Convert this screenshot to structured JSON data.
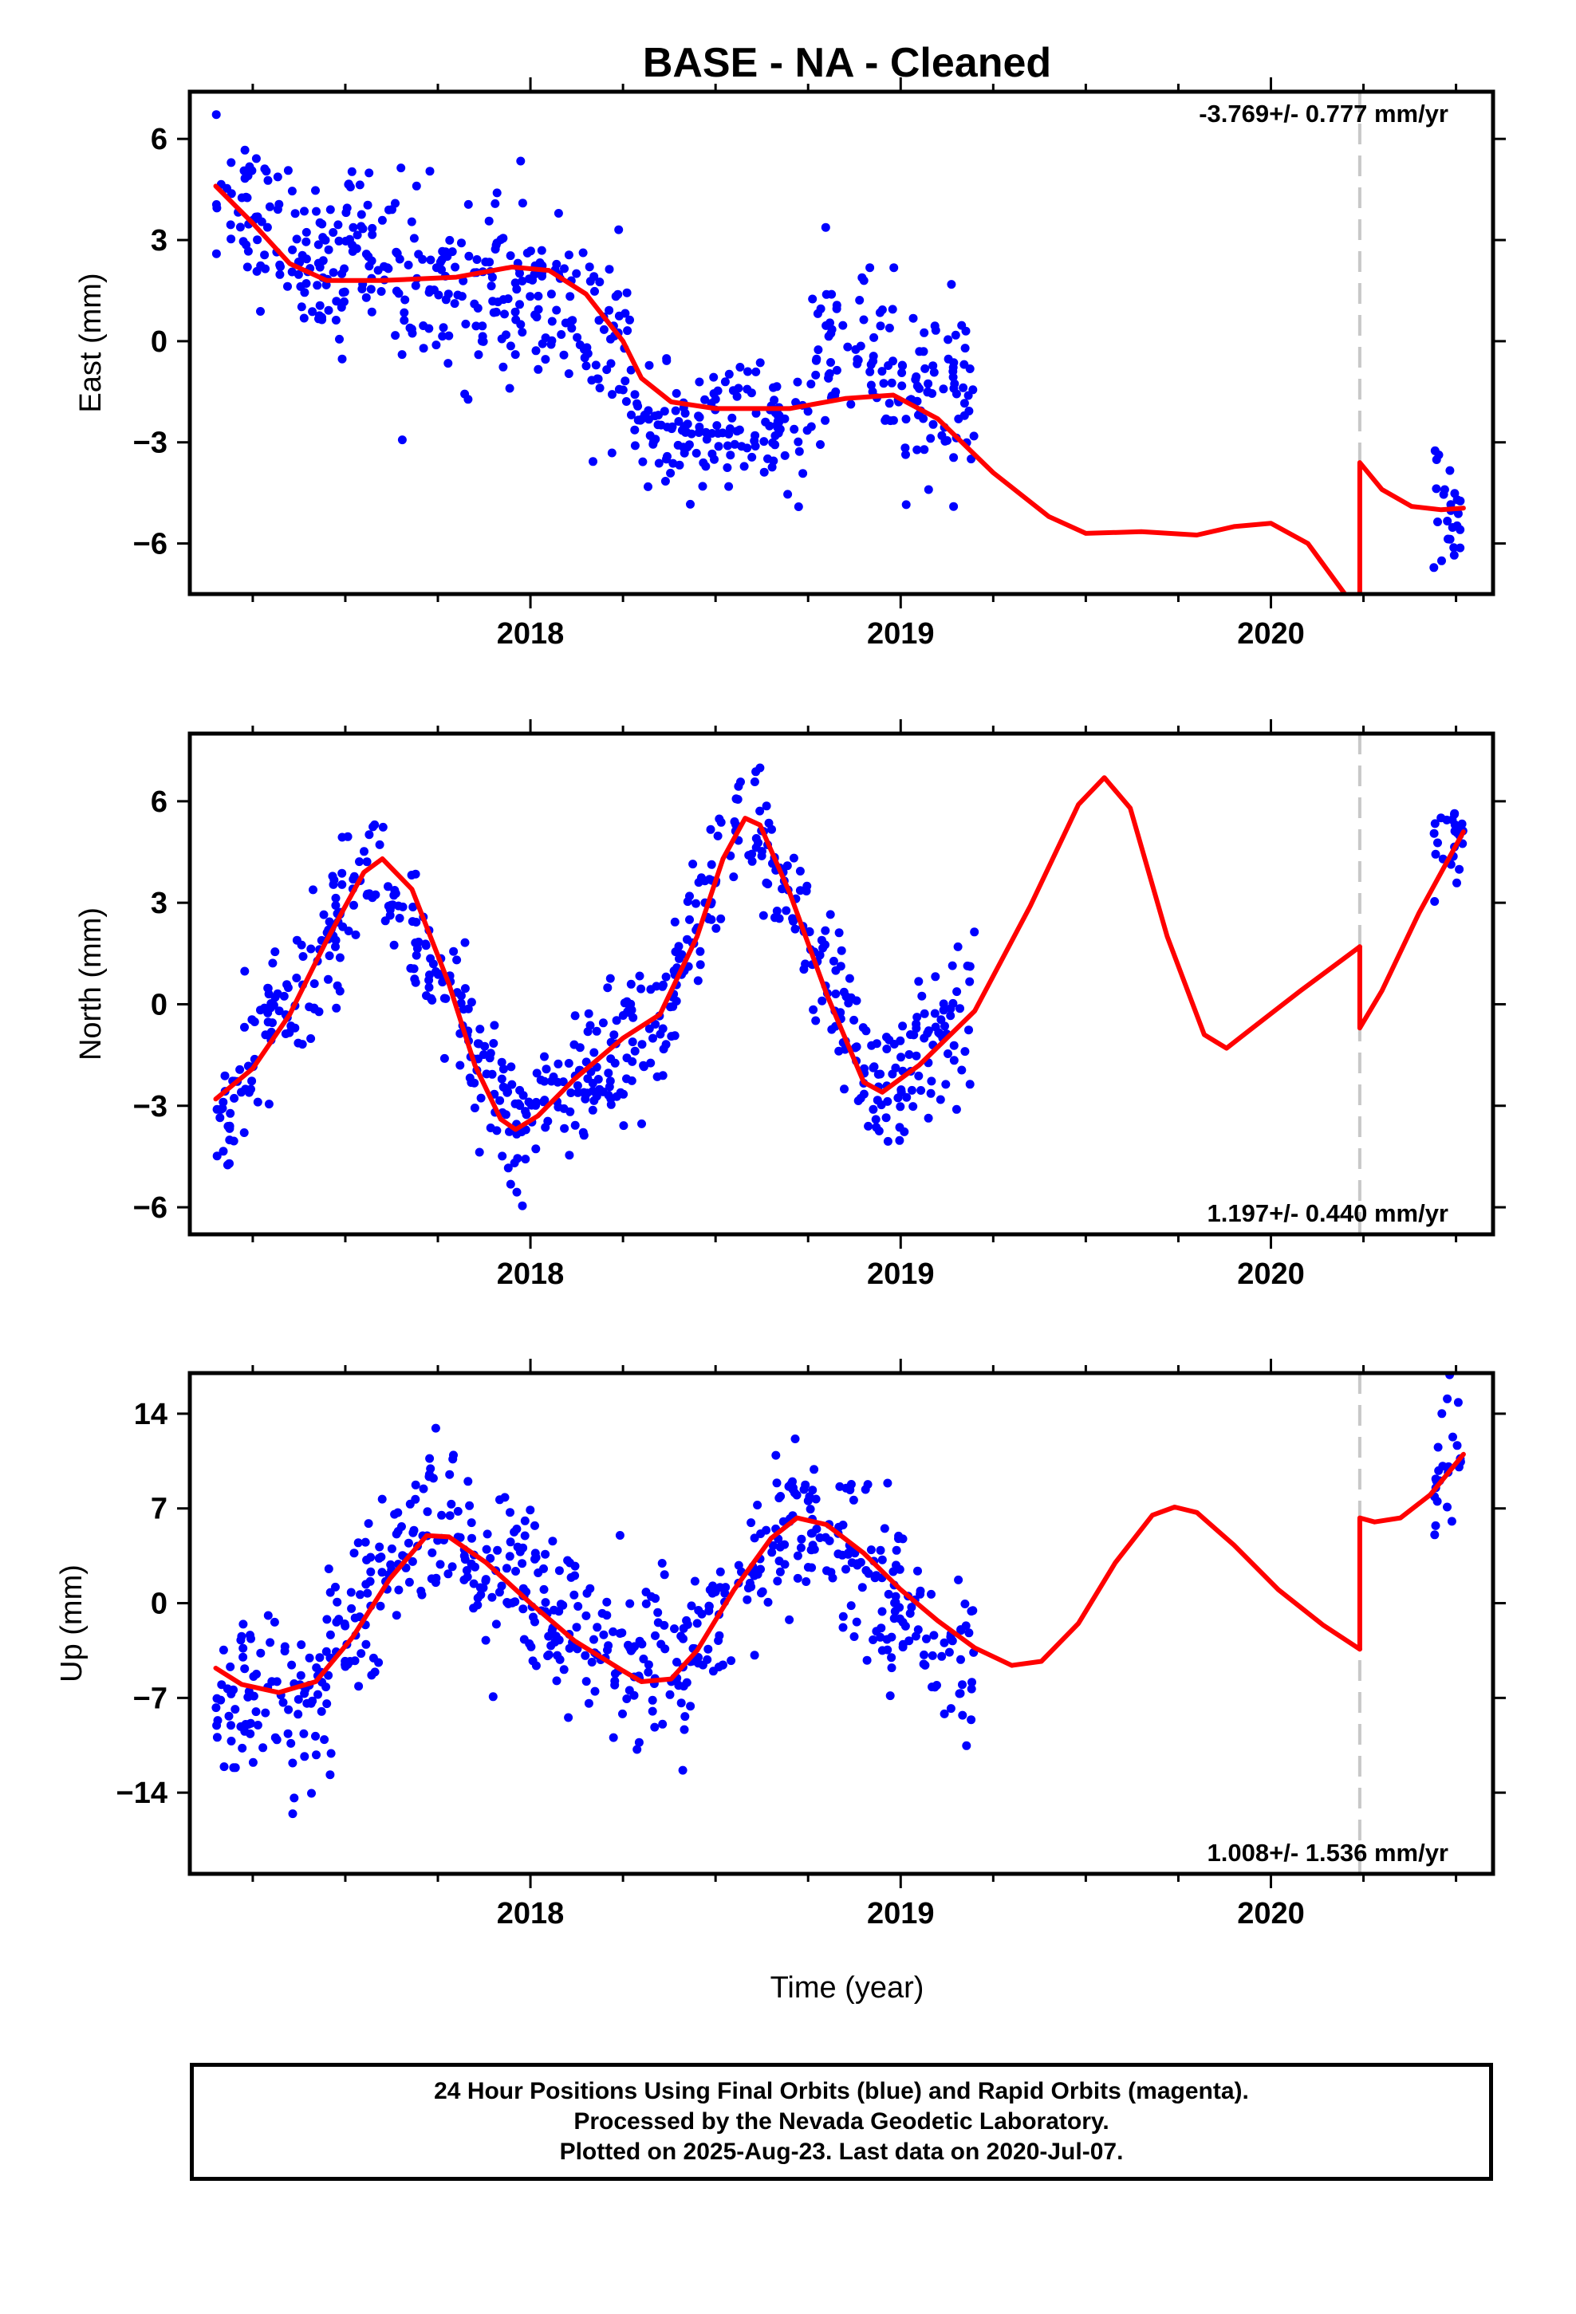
{
  "chart_data": {
    "type": "scatter",
    "title": "BASE  - NA - Cleaned",
    "xlabel": "Time (year)",
    "xlim": [
      2017.08,
      2020.6
    ],
    "x_ticks": [
      2018,
      2019,
      2020
    ],
    "offset_epoch": 2020.24,
    "colors": {
      "points": "#0000ff",
      "model": "#ff0000",
      "offset_line": "#c8c8c8"
    },
    "grid": false,
    "panels": [
      {
        "name": "east",
        "ylabel": "East (mm)",
        "ylim": [
          -7.5,
          7.4
        ],
        "y_ticks": [
          6,
          3,
          0,
          -3,
          -6
        ],
        "y_tick_labels": [
          "6",
          "3",
          "0",
          "−3",
          "−6"
        ],
        "rate_text": "-3.769+/- 0.777 mm/yr",
        "rate_position": "top-right",
        "model_segments": [
          [
            [
              2017.15,
              4.6
            ],
            [
              2017.25,
              3.5
            ],
            [
              2017.35,
              2.3
            ],
            [
              2017.45,
              1.8
            ],
            [
              2017.6,
              1.8
            ],
            [
              2017.8,
              1.9
            ],
            [
              2017.95,
              2.2
            ],
            [
              2018.05,
              2.1
            ],
            [
              2018.15,
              1.4
            ],
            [
              2018.25,
              0.0
            ],
            [
              2018.3,
              -1.1
            ],
            [
              2018.38,
              -1.8
            ],
            [
              2018.5,
              -2.0
            ],
            [
              2018.7,
              -2.0
            ],
            [
              2018.85,
              -1.7
            ],
            [
              2018.98,
              -1.6
            ],
            [
              2019.1,
              -2.3
            ],
            [
              2019.25,
              -3.9
            ],
            [
              2019.4,
              -5.2
            ],
            [
              2019.5,
              -5.7
            ],
            [
              2019.65,
              -5.65
            ],
            [
              2019.8,
              -5.75
            ],
            [
              2019.9,
              -5.5
            ],
            [
              2020.0,
              -5.4
            ],
            [
              2020.1,
              -6.0
            ],
            [
              2020.2,
              -7.5
            ]
          ],
          [
            [
              2020.24,
              -7.5
            ],
            [
              2020.24,
              -3.6
            ],
            [
              2020.3,
              -4.4
            ],
            [
              2020.38,
              -4.9
            ],
            [
              2020.46,
              -5.0
            ],
            [
              2020.52,
              -4.95
            ]
          ]
        ],
        "clusters": [
          {
            "x0": 2017.15,
            "x1": 2017.5,
            "m0": 4.4,
            "m1": 1.9,
            "sd": 1.1
          },
          {
            "x0": 2017.5,
            "x1": 2017.65,
            "m0": 3.2,
            "m1": 2.3,
            "sd": 1.0
          },
          {
            "x0": 2017.65,
            "x1": 2018.0,
            "m0": 1.6,
            "m1": 1.6,
            "sd": 1.3
          },
          {
            "x0": 2018.0,
            "x1": 2018.28,
            "m0": 1.4,
            "m1": -0.6,
            "sd": 1.3
          },
          {
            "x0": 2018.28,
            "x1": 2018.75,
            "m0": -2.7,
            "m1": -2.6,
            "sd": 0.9
          },
          {
            "x0": 2018.75,
            "x1": 2019.2,
            "m0": -0.5,
            "m1": -1.6,
            "sd": 1.3
          },
          {
            "x0": 2020.44,
            "x1": 2020.52,
            "m0": -4.9,
            "m1": -5.4,
            "sd": 1.0
          }
        ]
      },
      {
        "name": "north",
        "ylabel": "North (mm)",
        "ylim": [
          -6.8,
          8.0
        ],
        "y_ticks": [
          6,
          3,
          0,
          -3,
          -6
        ],
        "y_tick_labels": [
          "6",
          "3",
          "0",
          "−3",
          "−6"
        ],
        "rate_text": "1.197+/- 0.440 mm/yr",
        "rate_position": "bottom-right",
        "model_segments": [
          [
            [
              2017.15,
              -2.8
            ],
            [
              2017.25,
              -1.9
            ],
            [
              2017.35,
              -0.3
            ],
            [
              2017.45,
              1.9
            ],
            [
              2017.55,
              3.9
            ],
            [
              2017.6,
              4.3
            ],
            [
              2017.68,
              3.4
            ],
            [
              2017.78,
              0.6
            ],
            [
              2017.85,
              -1.8
            ],
            [
              2017.92,
              -3.4
            ],
            [
              2017.96,
              -3.7
            ],
            [
              2018.02,
              -3.3
            ],
            [
              2018.12,
              -2.2
            ],
            [
              2018.25,
              -1.0
            ],
            [
              2018.35,
              -0.3
            ],
            [
              2018.45,
              2.0
            ],
            [
              2018.52,
              4.3
            ],
            [
              2018.58,
              5.5
            ],
            [
              2018.62,
              5.3
            ],
            [
              2018.7,
              3.3
            ],
            [
              2018.8,
              0.3
            ],
            [
              2018.9,
              -2.3
            ],
            [
              2018.95,
              -2.6
            ],
            [
              2019.05,
              -1.8
            ],
            [
              2019.2,
              -0.2
            ],
            [
              2019.35,
              2.9
            ],
            [
              2019.48,
              5.9
            ],
            [
              2019.55,
              6.7
            ],
            [
              2019.62,
              5.8
            ],
            [
              2019.72,
              2.0
            ],
            [
              2019.82,
              -0.9
            ],
            [
              2019.88,
              -1.3
            ],
            [
              2019.95,
              -0.7
            ],
            [
              2020.08,
              0.4
            ],
            [
              2020.24,
              1.7
            ]
          ],
          [
            [
              2020.24,
              1.7
            ],
            [
              2020.24,
              -0.7
            ],
            [
              2020.3,
              0.4
            ],
            [
              2020.4,
              2.7
            ],
            [
              2020.52,
              5.1
            ]
          ]
        ],
        "clusters": [
          {
            "x0": 2017.15,
            "x1": 2017.58,
            "m0": -3.6,
            "m1": 4.2,
            "sd": 1.0
          },
          {
            "x0": 2017.58,
            "x1": 2017.98,
            "m0": 4.2,
            "m1": -3.9,
            "sd": 1.0
          },
          {
            "x0": 2017.98,
            "x1": 2018.35,
            "m0": -3.6,
            "m1": -0.5,
            "sd": 1.0
          },
          {
            "x0": 2018.35,
            "x1": 2018.58,
            "m0": -0.5,
            "m1": 5.8,
            "sd": 1.0
          },
          {
            "x0": 2018.58,
            "x1": 2018.95,
            "m0": 5.8,
            "m1": -2.9,
            "sd": 1.0
          },
          {
            "x0": 2018.95,
            "x1": 2019.2,
            "m0": -2.5,
            "m1": 0.0,
            "sd": 1.0
          },
          {
            "x0": 2020.44,
            "x1": 2020.52,
            "m0": 4.4,
            "m1": 5.2,
            "sd": 0.6
          }
        ]
      },
      {
        "name": "up",
        "ylabel": "Up (mm)",
        "ylim": [
          -20,
          17
        ],
        "y_ticks": [
          14,
          7,
          0,
          -7,
          -14
        ],
        "y_tick_labels": [
          "14",
          "7",
          "0",
          "−7",
          "−14"
        ],
        "rate_text": "1.008+/- 1.536 mm/yr",
        "rate_position": "bottom-right",
        "model_segments": [
          [
            [
              2017.15,
              -4.8
            ],
            [
              2017.22,
              -6.0
            ],
            [
              2017.32,
              -6.6
            ],
            [
              2017.42,
              -5.8
            ],
            [
              2017.52,
              -2.5
            ],
            [
              2017.62,
              1.8
            ],
            [
              2017.72,
              5.0
            ],
            [
              2017.78,
              4.9
            ],
            [
              2017.88,
              3.0
            ],
            [
              2018.0,
              0.0
            ],
            [
              2018.12,
              -2.8
            ],
            [
              2018.25,
              -5.0
            ],
            [
              2018.3,
              -5.8
            ],
            [
              2018.38,
              -5.6
            ],
            [
              2018.45,
              -3.5
            ],
            [
              2018.55,
              1.0
            ],
            [
              2018.65,
              4.8
            ],
            [
              2018.72,
              6.3
            ],
            [
              2018.8,
              5.8
            ],
            [
              2018.9,
              3.7
            ],
            [
              2019.0,
              1.0
            ],
            [
              2019.1,
              -1.3
            ],
            [
              2019.2,
              -3.3
            ],
            [
              2019.3,
              -4.6
            ],
            [
              2019.38,
              -4.3
            ],
            [
              2019.48,
              -1.5
            ],
            [
              2019.58,
              3.0
            ],
            [
              2019.68,
              6.5
            ],
            [
              2019.74,
              7.1
            ],
            [
              2019.8,
              6.7
            ],
            [
              2019.9,
              4.3
            ],
            [
              2020.02,
              1.0
            ],
            [
              2020.14,
              -1.6
            ],
            [
              2020.24,
              -3.4
            ]
          ],
          [
            [
              2020.24,
              -3.4
            ],
            [
              2020.24,
              6.3
            ],
            [
              2020.28,
              6.0
            ],
            [
              2020.35,
              6.3
            ],
            [
              2020.43,
              8.0
            ],
            [
              2020.52,
              11.0
            ]
          ]
        ],
        "clusters": [
          {
            "x0": 2017.15,
            "x1": 2017.45,
            "m0": -7.5,
            "m1": -7.8,
            "sd": 3.0
          },
          {
            "x0": 2017.45,
            "x1": 2017.72,
            "m0": -3.0,
            "m1": 6.0,
            "sd": 3.0
          },
          {
            "x0": 2017.72,
            "x1": 2018.0,
            "m0": 6.0,
            "m1": 0.5,
            "sd": 3.2
          },
          {
            "x0": 2018.0,
            "x1": 2018.4,
            "m0": 0.5,
            "m1": -5.5,
            "sd": 3.0
          },
          {
            "x0": 2018.4,
            "x1": 2018.72,
            "m0": -5.5,
            "m1": 6.5,
            "sd": 3.0
          },
          {
            "x0": 2018.72,
            "x1": 2019.2,
            "m0": 6.0,
            "m1": -5.0,
            "sd": 3.4
          },
          {
            "x0": 2020.44,
            "x1": 2020.52,
            "m0": 8.5,
            "m1": 12.0,
            "sd": 3.0
          }
        ]
      }
    ]
  },
  "footer": {
    "line1": "24 Hour Positions Using Final Orbits (blue) and Rapid Orbits (magenta).",
    "line2": "Processed by the Nevada Geodetic Laboratory.",
    "line3": "Plotted on 2025-Aug-23. Last data on 2020-Jul-07."
  }
}
